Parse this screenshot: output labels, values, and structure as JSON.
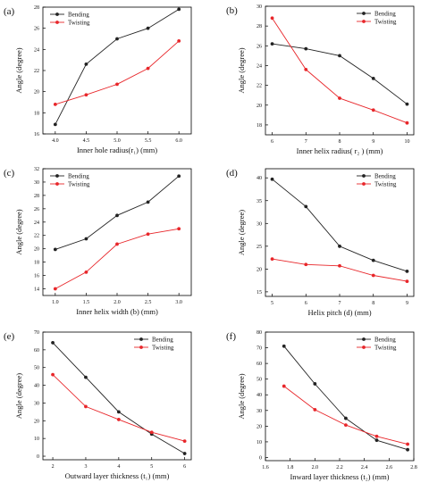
{
  "colors": {
    "bending": "#222222",
    "twisting": "#e8262a",
    "axis": "#000000"
  },
  "chart_data": [
    {
      "type": "line",
      "panel_label": "(a)",
      "xlabel": "Inner hole radius(r₁) (mm)",
      "ylabel": "Angle (degree)",
      "x": [
        4.0,
        4.5,
        5.0,
        5.5,
        6.0
      ],
      "xticks": [
        "4.0",
        "4.5",
        "5.0",
        "5.5",
        "6.0"
      ],
      "xlim": [
        3.8,
        6.2
      ],
      "ylim": [
        16,
        28
      ],
      "yticks": [
        16,
        18,
        20,
        22,
        24,
        26,
        28
      ],
      "legend": "top-left",
      "series": [
        {
          "name": "Bending",
          "values": [
            16.9,
            22.6,
            25.0,
            26.0,
            27.8
          ]
        },
        {
          "name": "Twisting",
          "values": [
            18.8,
            19.7,
            20.7,
            22.2,
            24.8
          ]
        }
      ]
    },
    {
      "type": "line",
      "panel_label": "(b)",
      "xlabel": "Inner helix radius( r₂ ) (mm)",
      "ylabel": "Angle (degree)",
      "x": [
        6,
        7,
        8,
        9,
        10
      ],
      "xticks": [
        "6",
        "7",
        "8",
        "9",
        "10"
      ],
      "xlim": [
        5.8,
        10.2
      ],
      "ylim": [
        17,
        30
      ],
      "yticks": [
        18,
        20,
        22,
        24,
        26,
        28,
        30
      ],
      "legend": "top-right",
      "series": [
        {
          "name": "Bending",
          "values": [
            26.2,
            25.7,
            25.0,
            22.7,
            20.1
          ]
        },
        {
          "name": "Twisting",
          "values": [
            28.8,
            23.6,
            20.7,
            19.5,
            18.2
          ]
        }
      ]
    },
    {
      "type": "line",
      "panel_label": "(c)",
      "xlabel": "Inner helix width (b) (mm)",
      "ylabel": "Angle (degree)",
      "x": [
        1.0,
        1.5,
        2.0,
        2.5,
        3.0
      ],
      "xticks": [
        "1.0",
        "1.5",
        "2.0",
        "2.5",
        "3.0"
      ],
      "xlim": [
        0.8,
        3.2
      ],
      "ylim": [
        13,
        32
      ],
      "yticks": [
        14,
        16,
        18,
        20,
        22,
        24,
        26,
        28,
        30,
        32
      ],
      "legend": "top-left",
      "series": [
        {
          "name": "Bending",
          "values": [
            19.9,
            21.5,
            25.0,
            27.0,
            30.9
          ]
        },
        {
          "name": "Twisting",
          "values": [
            14.0,
            16.5,
            20.7,
            22.2,
            23.0
          ]
        }
      ]
    },
    {
      "type": "line",
      "panel_label": "(d)",
      "xlabel": "Helix pitch (d) (mm)",
      "ylabel": "Angle (degree)",
      "x": [
        5,
        6,
        7,
        8,
        9
      ],
      "xticks": [
        "5",
        "6",
        "7",
        "8",
        "9"
      ],
      "xlim": [
        4.8,
        9.2
      ],
      "ylim": [
        14,
        42
      ],
      "yticks": [
        15,
        20,
        25,
        30,
        35,
        40
      ],
      "legend": "top-right",
      "series": [
        {
          "name": "Bending",
          "values": [
            39.7,
            33.7,
            25.0,
            21.9,
            19.5
          ]
        },
        {
          "name": "Twisting",
          "values": [
            22.2,
            21.0,
            20.7,
            18.6,
            17.3
          ]
        }
      ]
    },
    {
      "type": "line",
      "panel_label": "(e)",
      "xlabel": "Outward layer thickness (t₁) (mm)",
      "ylabel": "Angle (degree)",
      "x": [
        2,
        3,
        4,
        5,
        6
      ],
      "xticks": [
        "2",
        "3",
        "4",
        "5",
        "6"
      ],
      "xlim": [
        1.7,
        6.2
      ],
      "ylim": [
        -2,
        70
      ],
      "yticks": [
        0,
        10,
        20,
        30,
        40,
        50,
        60,
        70
      ],
      "legend": "top-right",
      "series": [
        {
          "name": "Bending",
          "values": [
            64.0,
            44.5,
            25.0,
            12.5,
            1.5
          ]
        },
        {
          "name": "Twisting",
          "values": [
            46.0,
            28.0,
            20.7,
            13.5,
            8.5
          ]
        }
      ]
    },
    {
      "type": "line",
      "panel_label": "(f)",
      "xlabel": "Inward layer thickness (t₂) (mm)",
      "ylabel": "Angle (degree)",
      "x": [
        1.75,
        2.0,
        2.25,
        2.5,
        2.75
      ],
      "xticks": [
        "1.6",
        "1.8",
        "2.0",
        "2.2",
        "2.4",
        "2.6",
        "2.8"
      ],
      "xtick_values": [
        1.6,
        1.8,
        2.0,
        2.2,
        2.4,
        2.6,
        2.8
      ],
      "xlim": [
        1.6,
        2.8
      ],
      "ylim": [
        -2,
        80
      ],
      "yticks": [
        0,
        10,
        20,
        30,
        40,
        50,
        60,
        70,
        80
      ],
      "legend": "top-right",
      "series": [
        {
          "name": "Bending",
          "values": [
            71.0,
            47.0,
            25.0,
            11.0,
            5.0
          ]
        },
        {
          "name": "Twisting",
          "values": [
            45.5,
            30.5,
            20.7,
            13.5,
            8.5
          ]
        }
      ]
    }
  ]
}
